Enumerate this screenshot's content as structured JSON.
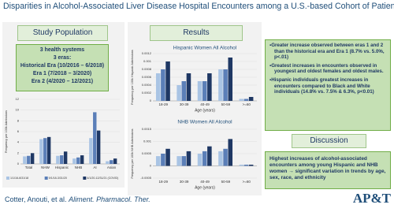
{
  "title": "Disparities in Alcohol-Associated Liver Disease Hospital Encounters among a U.S.-based Cohort of Patients",
  "study_population": {
    "heading": "Study Population",
    "lines": [
      "3 health systems",
      "3 eras:",
      "Historical Era (10/2016 – 6/2018)",
      "Era 1 (7/2018 – 3/2020)",
      "Era 2 (4/2020 – 12/2021)"
    ]
  },
  "results": {
    "heading": "Results"
  },
  "findings": [
    "Greater increase observed between eras 1 and 2 than the historical era and Era 1 (8.7% vs. 5.0%, p<.01)",
    "Greatest increases in encounters observed in youngest and oldest females and oldest males.",
    "Hispanic individuals greatest increases in encounters compared to Black and White individuals (14.8% vs. 7.5% & 6.3%, p<0.01)"
  ],
  "discussion": {
    "heading": "Discussion",
    "text": "Highest increases of alcohol-associated encounters among young Hispanic and NHB women → significant variation in trends by age, sex, race, and ethnicity"
  },
  "citation": {
    "authors": "Cotter, Anouti, et al.",
    "journal": "Aliment. Pharmacol. Ther."
  },
  "logo": "AP&T",
  "chart_data": [
    {
      "type": "bar",
      "y_label": "Frequency per 100k Admissions",
      "categories": [
        "Total",
        "NHW",
        "Hispanic",
        "NHB",
        "AI",
        "Asian"
      ],
      "series": [
        {
          "name": "1/1/16-6/31/18",
          "color": "#a9c4e4",
          "values": [
            1.4,
            4.6,
            1.5,
            1.0,
            4.8,
            0.5
          ]
        },
        {
          "name": "9/1/18-3/31/20",
          "color": "#5b7fb8",
          "values": [
            1.5,
            4.8,
            1.6,
            1.2,
            9.6,
            0.7
          ]
        },
        {
          "name": "4/1/20-12/31/21 (COVID)",
          "color": "#1f3864",
          "values": [
            2.0,
            5.0,
            2.3,
            1.6,
            6.2,
            1.0
          ]
        }
      ],
      "ylim": [
        0,
        12
      ],
      "yticks": [
        0,
        2,
        4,
        6,
        8,
        10,
        12
      ],
      "legend": "bottom"
    },
    {
      "type": "bar",
      "title": "Hispanic Women All Alcohol",
      "y_label": "Frequency per 100k Hispanic Admissions",
      "x_label": "Age (years)",
      "categories": [
        "18-29",
        "30-39",
        "40-49",
        "50-59",
        ">=60"
      ],
      "series": [
        {
          "color": "#a9c4e4",
          "values": [
            0.0007,
            0.0004,
            0.0005,
            0.0008,
            5e-05
          ]
        },
        {
          "color": "#5b7fb8",
          "values": [
            0.0008,
            0.0005,
            0.0005,
            0.0008,
            5e-05
          ]
        },
        {
          "color": "#1f3864",
          "values": [
            0.001,
            0.0007,
            0.0007,
            0.0011,
            0.0001
          ]
        }
      ],
      "ylim": [
        0,
        0.0012
      ],
      "yticks": [
        0,
        0.0002,
        0.0004,
        0.0006,
        0.0008,
        0.001,
        0.0012
      ]
    },
    {
      "type": "bar",
      "title": "NHB Women All Alcohol",
      "y_label": "Frequency per 100k NHB Admissions",
      "x_label": "Age (years)",
      "categories": [
        "18-29",
        "30-39",
        "40-49",
        "50-59",
        ">=60"
      ],
      "series": [
        {
          "color": "#a9c4e4",
          "values": [
            0.0004,
            0.0004,
            0.0005,
            0.0006,
            5e-05
          ]
        },
        {
          "color": "#5b7fb8",
          "values": [
            0.0005,
            0.0004,
            0.0006,
            0.0007,
            5e-05
          ]
        },
        {
          "color": "#1f3864",
          "values": [
            0.0007,
            0.0006,
            0.0008,
            0.0011,
            5e-05
          ]
        }
      ],
      "ylim": [
        -0.0005,
        0.0015
      ],
      "yticks": [
        -0.0005,
        0,
        0.0005,
        0.001,
        0.0015
      ]
    }
  ]
}
